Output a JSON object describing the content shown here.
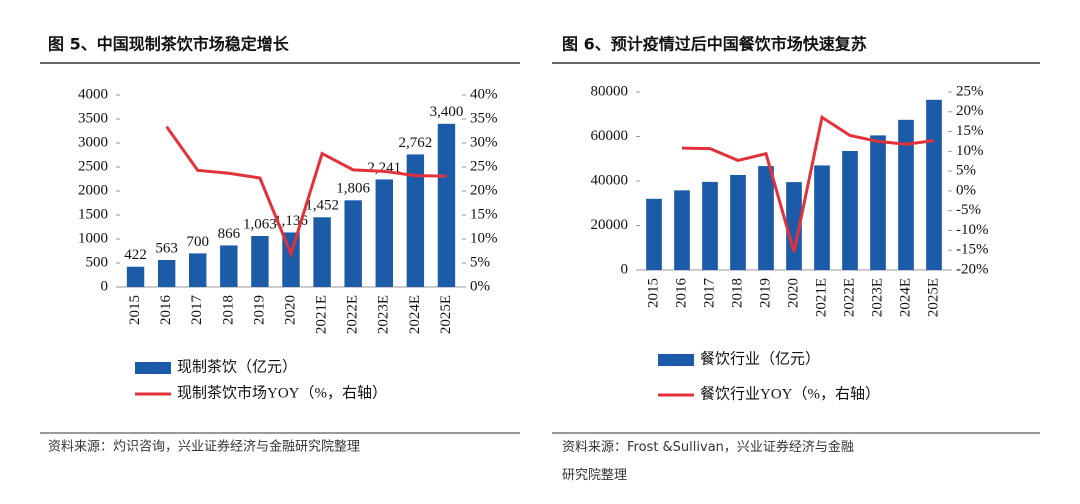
{
  "chart_data": [
    {
      "type": "bar",
      "title": "图 5、中国现制茶饮市场稳定增长",
      "categories": [
        "2015",
        "2016",
        "2017",
        "2018",
        "2019",
        "2020",
        "2021E",
        "2022E",
        "2023E",
        "2024E",
        "2025E"
      ],
      "series": [
        {
          "name": "现制茶饮（亿元）",
          "type": "bar",
          "color": "#1b5ba8",
          "values": [
            422,
            563,
            700,
            866,
            1063,
            1136,
            1452,
            1806,
            2241,
            2762,
            3400
          ],
          "value_labels": [
            "422",
            "563",
            "700",
            "866",
            "1,063",
            "1,136",
            "1,452",
            "1,806",
            "2,241",
            "2,762",
            "3,400"
          ]
        },
        {
          "name": "现制茶饮市场YOY（%，右轴）",
          "type": "line",
          "axis": "y2",
          "color": "#e2313b",
          "values": [
            null,
            33.4,
            24.3,
            23.7,
            22.7,
            6.9,
            27.8,
            24.4,
            24.1,
            23.2,
            23.1
          ]
        }
      ],
      "ylim": [
        0,
        4000
      ],
      "yticks": [
        0,
        500,
        1000,
        1500,
        2000,
        2500,
        3000,
        3500,
        4000
      ],
      "y2lim": [
        0,
        40
      ],
      "y2ticks": [
        {
          "value": 0,
          "label": "0%"
        },
        {
          "value": 5,
          "label": "5%"
        },
        {
          "value": 10,
          "label": "10%"
        },
        {
          "value": 15,
          "label": "15%"
        },
        {
          "value": 20,
          "label": "20%"
        },
        {
          "value": 25,
          "label": "25%"
        },
        {
          "value": 30,
          "label": "30%"
        },
        {
          "value": 35,
          "label": "35%"
        },
        {
          "value": 40,
          "label": "40%"
        }
      ],
      "source": "资料来源：灼识咨询，兴业证券经济与金融研究院整理"
    },
    {
      "type": "bar",
      "title": "图 6、预计疫情过后中国餐饮市场快速复苏",
      "categories": [
        "2015",
        "2016",
        "2017",
        "2018",
        "2019",
        "2020",
        "2021E",
        "2022E",
        "2023E",
        "2024E",
        "2025E"
      ],
      "series": [
        {
          "name": "餐饮行业（亿元）",
          "type": "bar",
          "color": "#1b5ba8",
          "values": [
            32000,
            35800,
            39600,
            42700,
            46700,
            39500,
            47000,
            53500,
            60500,
            67500,
            76500
          ]
        },
        {
          "name": "餐饮行业YOY（%，右轴）",
          "type": "line",
          "axis": "y2",
          "color": "#e2313b",
          "values": [
            null,
            10.8,
            10.7,
            7.7,
            9.4,
            -15.4,
            18.6,
            14.0,
            12.5,
            11.8,
            12.7
          ]
        }
      ],
      "ylim": [
        0,
        80000
      ],
      "yticks": [
        0,
        20000,
        40000,
        60000,
        80000
      ],
      "y2lim": [
        -20,
        25
      ],
      "y2ticks": [
        {
          "value": -20,
          "label": "-20%"
        },
        {
          "value": -15,
          "label": "-15%"
        },
        {
          "value": -10,
          "label": "-10%"
        },
        {
          "value": -5,
          "label": "-5%"
        },
        {
          "value": 0,
          "label": "0%"
        },
        {
          "value": 5,
          "label": "5%"
        },
        {
          "value": 10,
          "label": "10%"
        },
        {
          "value": 15,
          "label": "15%"
        },
        {
          "value": 20,
          "label": "20%"
        },
        {
          "value": 25,
          "label": "25%"
        }
      ],
      "source": "资料来源：Frost &Sullivan，兴业证券经济与金融研究院整理"
    }
  ]
}
